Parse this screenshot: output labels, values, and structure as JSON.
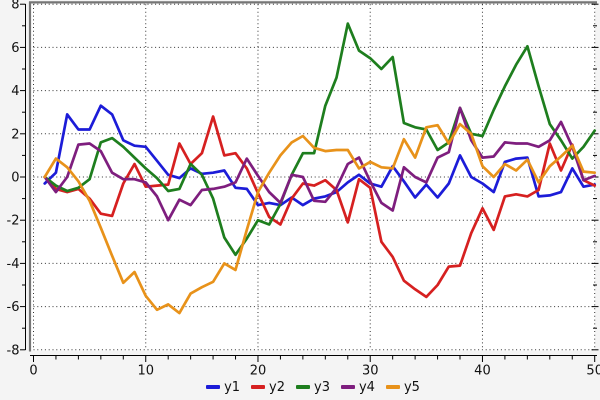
{
  "figure": {
    "background": "#f4f4f4",
    "plot_background": "#ffffff",
    "border_color": "#757575",
    "grid_color": "#333333",
    "axis_color": "#000000",
    "tick_label_color": "#111111"
  },
  "chart_data": {
    "type": "line",
    "title": "",
    "xlabel": "",
    "ylabel": "",
    "xlim": [
      0,
      50
    ],
    "ylim": [
      -8,
      8
    ],
    "x_ticks": [
      0,
      10,
      20,
      30,
      40,
      50
    ],
    "x_minor_step": 2,
    "y_ticks": [
      8,
      6,
      4,
      2,
      0,
      -2,
      -4,
      -6,
      -8
    ],
    "y_minor_step": 1,
    "grid": true,
    "legend_position": "bottom-center",
    "x": [
      1,
      2,
      3,
      4,
      5,
      6,
      7,
      8,
      9,
      10,
      11,
      12,
      13,
      14,
      15,
      16,
      17,
      18,
      19,
      20,
      21,
      22,
      23,
      24,
      25,
      26,
      27,
      28,
      29,
      30,
      31,
      32,
      33,
      34,
      35,
      36,
      37,
      38,
      39,
      40,
      41,
      42,
      43,
      44,
      45,
      46,
      47,
      48,
      49,
      50
    ],
    "series": [
      {
        "name": "y1",
        "color": "#1c1cd8",
        "values": [
          -0.3,
          0.2,
          2.9,
          2.2,
          2.2,
          3.3,
          2.9,
          1.7,
          1.45,
          1.4,
          0.75,
          0.1,
          -0.05,
          0.4,
          0.15,
          0.2,
          0.3,
          -0.5,
          -0.55,
          -1.3,
          -1.2,
          -1.3,
          -0.95,
          -1.3,
          -1.0,
          -0.9,
          -0.7,
          -0.25,
          0.1,
          -0.3,
          -0.45,
          0.5,
          -0.2,
          -0.95,
          -0.35,
          -0.95,
          -0.3,
          1.0,
          0.0,
          -0.3,
          -0.7,
          0.7,
          0.85,
          0.9,
          -0.9,
          -0.85,
          -0.7,
          0.4,
          -0.45,
          -0.35
        ]
      },
      {
        "name": "y2",
        "color": "#d62020",
        "values": [
          0.0,
          -0.55,
          -0.7,
          -0.55,
          -1.0,
          -1.7,
          -1.8,
          -0.3,
          0.6,
          -0.45,
          -0.4,
          -0.35,
          1.55,
          0.6,
          1.1,
          2.8,
          1.0,
          1.1,
          0.4,
          -0.75,
          -1.85,
          -2.2,
          -1.0,
          -0.3,
          -0.4,
          -0.15,
          -0.6,
          -2.1,
          -0.1,
          -0.5,
          -3.0,
          -3.7,
          -4.8,
          -5.2,
          -5.55,
          -5.0,
          -4.15,
          -4.1,
          -2.6,
          -1.45,
          -2.45,
          -0.9,
          -0.8,
          -0.9,
          -0.6,
          1.55,
          0.3,
          1.5,
          -0.15,
          -0.4
        ]
      },
      {
        "name": "y3",
        "color": "#1e7e1e",
        "values": [
          0.0,
          -0.4,
          -0.65,
          -0.5,
          -0.1,
          1.6,
          1.8,
          1.4,
          0.9,
          0.4,
          -0.05,
          -0.65,
          -0.55,
          0.6,
          0.1,
          -1.0,
          -2.8,
          -3.6,
          -2.85,
          -2.0,
          -2.2,
          -1.25,
          0.1,
          1.1,
          1.1,
          3.3,
          4.6,
          7.1,
          5.85,
          5.5,
          5.0,
          5.55,
          2.5,
          2.3,
          2.2,
          1.25,
          1.6,
          3.2,
          2.0,
          1.9,
          3.1,
          4.2,
          5.2,
          6.05,
          4.2,
          2.45,
          1.7,
          0.85,
          1.4,
          2.15
        ]
      },
      {
        "name": "y4",
        "color": "#7e1e7e",
        "values": [
          0.0,
          -0.7,
          0.0,
          1.5,
          1.55,
          1.2,
          0.2,
          -0.1,
          -0.1,
          -0.25,
          -0.9,
          -2.0,
          -1.05,
          -1.3,
          -0.6,
          -0.55,
          -0.45,
          -0.25,
          0.85,
          0.05,
          -0.7,
          -1.2,
          0.1,
          0.0,
          -1.1,
          -1.15,
          -0.5,
          0.6,
          0.9,
          -0.2,
          -1.2,
          -1.55,
          0.45,
          0.0,
          -0.25,
          0.9,
          1.15,
          3.2,
          1.7,
          0.9,
          0.95,
          1.6,
          1.55,
          1.55,
          1.4,
          1.7,
          2.55,
          1.4,
          -0.15,
          0.05
        ]
      },
      {
        "name": "y5",
        "color": "#e8921a",
        "values": [
          0.0,
          0.85,
          0.45,
          -0.2,
          -1.1,
          -2.35,
          -3.65,
          -4.9,
          -4.4,
          -5.5,
          -6.15,
          -5.9,
          -6.3,
          -5.4,
          -5.1,
          -4.85,
          -4.0,
          -4.3,
          -2.45,
          -0.7,
          0.2,
          1.0,
          1.6,
          1.9,
          1.35,
          1.2,
          1.25,
          1.25,
          0.4,
          0.7,
          0.45,
          0.4,
          1.75,
          0.9,
          2.3,
          2.4,
          1.55,
          2.45,
          2.0,
          0.5,
          0.0,
          0.6,
          0.3,
          0.8,
          -0.25,
          0.5,
          0.95,
          1.45,
          0.25,
          0.2
        ]
      }
    ]
  }
}
